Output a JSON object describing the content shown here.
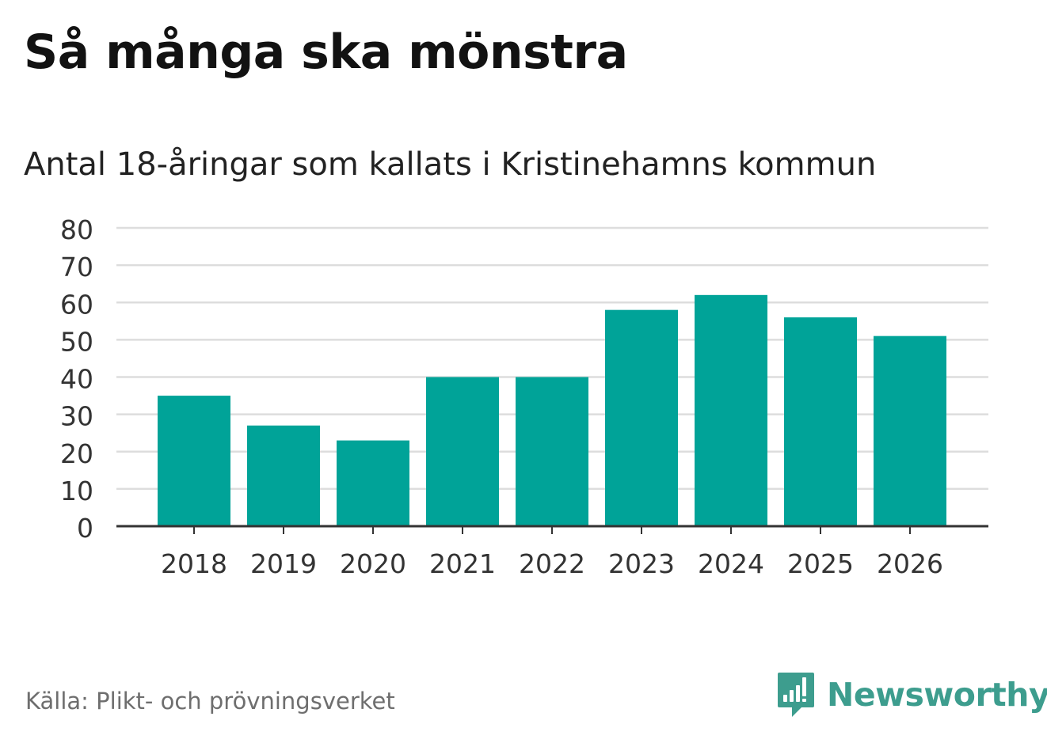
{
  "title": "Så många ska mönstra",
  "subtitle": "Antal 18-åringar som kallats i Kristinehamns kommun",
  "source": "Källa: Plikt- och prövningsverket",
  "logo": {
    "text": "Newsworthy",
    "icon": "bar-chart-speech-bubble-icon",
    "color": "#3d9d8e"
  },
  "colors": {
    "bar": "#00a398",
    "grid": "#dddddd",
    "axis": "#333333",
    "tick_text": "#333333"
  },
  "chart_data": {
    "type": "bar",
    "title": "Så många ska mönstra",
    "subtitle": "Antal 18-åringar som kallats i Kristinehamns kommun",
    "xlabel": "",
    "ylabel": "",
    "categories": [
      "2018",
      "2019",
      "2020",
      "2021",
      "2022",
      "2023",
      "2024",
      "2025",
      "2026"
    ],
    "values": [
      35,
      27,
      23,
      40,
      40,
      58,
      62,
      56,
      51
    ],
    "ylim": [
      0,
      80
    ],
    "yticks": [
      0,
      10,
      20,
      30,
      40,
      50,
      60,
      70,
      80
    ],
    "grid": true,
    "legend": "none"
  }
}
